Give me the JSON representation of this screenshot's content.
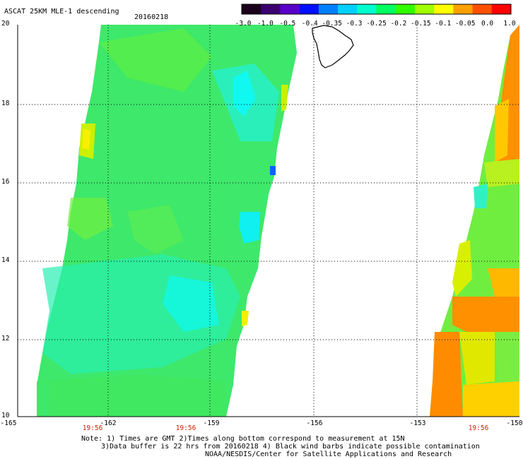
{
  "title": "ASCAT 25KM MLE-1 descending",
  "date": "20160218",
  "colorbar": {
    "labels": [
      "-3.0",
      "-1.0",
      "-0.5",
      "-0.4",
      "-0.35",
      "-0.3",
      "-0.25",
      "-0.2",
      "-0.15",
      "-0.1",
      "-0.05",
      "0.0",
      "1.0"
    ],
    "colors": [
      "#1a001a",
      "#3a0070",
      "#5a00c8",
      "#0010ff",
      "#0080ff",
      "#00d0ff",
      "#00ffcc",
      "#00ff60",
      "#30ff00",
      "#a0ff00",
      "#ffff00",
      "#ffa000",
      "#ff5000",
      "#ff0000"
    ]
  },
  "y_ticks": [
    "20",
    "18",
    "16",
    "14",
    "12",
    "10"
  ],
  "x_ticks": [
    "-165",
    "-162",
    "-159",
    "-156",
    "-153",
    "-150"
  ],
  "time_labels": [
    "19:56",
    "19:56",
    "19:56"
  ],
  "notes": {
    "line1": "Note: 1) Times are GMT 2)Times along bottom correspond to measurement at 15N",
    "line2": "3)Data buffer is 22 hrs from 20160218 4) Black wind barbs indicate possible contamination",
    "line3": "NOAA/NESDIS/Center for Satellite Applications and Research"
  },
  "colors": {
    "grid": "#000000",
    "time_label": "#cc2200",
    "swath_main": "#40e860",
    "swath_east": "#ff9a00"
  }
}
